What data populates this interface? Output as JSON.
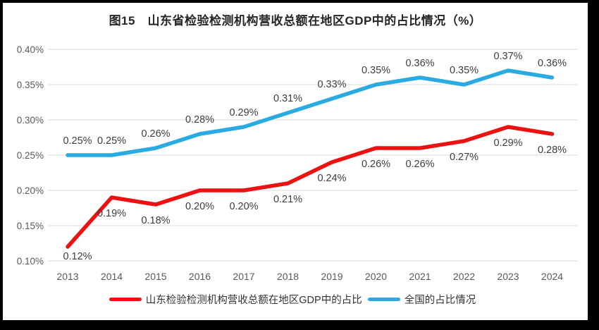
{
  "title": "图15　山东省检验检测机构营收总额在地区GDP中的占比情况（%）",
  "chart_data": {
    "type": "line",
    "categories": [
      "2013",
      "2014",
      "2015",
      "2016",
      "2017",
      "2018",
      "2019",
      "2020",
      "2021",
      "2022",
      "2023",
      "2024"
    ],
    "series": [
      {
        "name": "山东检验检测机构营收总额在地区GDP中的占比",
        "color": "#ee1111",
        "values": [
          0.12,
          0.19,
          0.18,
          0.2,
          0.2,
          0.21,
          0.24,
          0.26,
          0.26,
          0.27,
          0.29,
          0.28
        ],
        "labels": [
          "0.12%",
          "0.19%",
          "0.18%",
          "0.20%",
          "0.20%",
          "0.21%",
          "0.24%",
          "0.26%",
          "0.26%",
          "0.27%",
          "0.29%",
          "0.28%"
        ],
        "label_position": "below"
      },
      {
        "name": "全国的占比情况",
        "color": "#29abe2",
        "values": [
          0.25,
          0.25,
          0.26,
          0.28,
          0.29,
          0.31,
          0.33,
          0.35,
          0.36,
          0.35,
          0.37,
          0.36
        ],
        "labels": [
          "0.25%",
          "0.25%",
          "0.26%",
          "0.28%",
          "0.29%",
          "0.31%",
          "0.33%",
          "0.35%",
          "0.36%",
          "0.35%",
          "0.37%",
          "0.36%"
        ],
        "label_position": "above"
      }
    ],
    "xlabel": "",
    "ylabel": "",
    "y_axis": {
      "min": 0.1,
      "max": 0.4,
      "step": 0.05,
      "tick_labels": [
        "0.10%",
        "0.15%",
        "0.20%",
        "0.25%",
        "0.30%",
        "0.35%",
        "0.40%"
      ]
    },
    "grid": true,
    "legend_position": "bottom"
  },
  "colors": {
    "gridline": "#e2e2e2",
    "axis_text": "#595959",
    "data_label_text": "#3d3d3d",
    "title_text": "#262626",
    "frame_border": "#000000"
  }
}
